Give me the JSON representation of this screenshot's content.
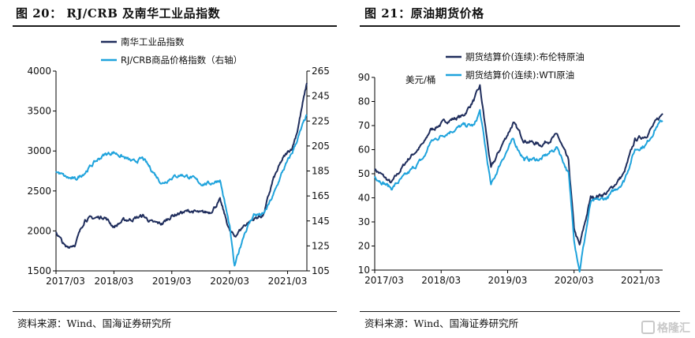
{
  "figures": {
    "left_title": "图 20：  RJ/CRB 及南华工业品指数",
    "right_title": "图 21：原油期货价格",
    "left_source": "资料来源：Wind、国海证券研究所",
    "right_source": "资料来源：Wind、国海证券研究所",
    "watermark": "格隆汇"
  },
  "colors": {
    "navy": "#1f2d5c",
    "cyan": "#1fa3dc",
    "axis": "#000000"
  },
  "chart_data": [
    {
      "type": "line",
      "title": "RJ/CRB 及南华工业品指数",
      "x_ticks": [
        "2017/03",
        "2018/03",
        "2019/03",
        "2020/03",
        "2021/03"
      ],
      "x_range": [
        "2017-03",
        "2021-07"
      ],
      "ylim": [
        1500,
        4000
      ],
      "y_ticks": [
        1500,
        2000,
        2500,
        3000,
        3500,
        4000
      ],
      "y2lim": [
        105,
        265
      ],
      "y2_ticks": [
        105,
        125,
        145,
        165,
        185,
        205,
        225,
        245,
        265
      ],
      "legend_position": "top",
      "series": [
        {
          "name": "南华工业品指数",
          "axis": "left",
          "color": "#1f2d5c",
          "x": [
            "2017-03",
            "2017-05",
            "2017-07",
            "2017-09",
            "2017-11",
            "2018-01",
            "2018-03",
            "2018-05",
            "2018-07",
            "2018-09",
            "2018-11",
            "2019-01",
            "2019-03",
            "2019-05",
            "2019-07",
            "2019-09",
            "2019-11",
            "2020-01",
            "2020-03",
            "2020-04",
            "2020-06",
            "2020-08",
            "2020-10",
            "2020-12",
            "2021-02",
            "2021-04",
            "2021-05",
            "2021-07"
          ],
          "values": [
            1990,
            1790,
            1840,
            2150,
            2160,
            2180,
            2050,
            2130,
            2150,
            2190,
            2100,
            2090,
            2190,
            2230,
            2250,
            2220,
            2240,
            2380,
            2000,
            1930,
            2070,
            2150,
            2200,
            2640,
            2900,
            3050,
            3250,
            3850
          ]
        },
        {
          "name": "RJ/CRB商品价格指数（右轴）",
          "axis": "right",
          "color": "#1fa3dc",
          "x": [
            "2017-03",
            "2017-05",
            "2017-07",
            "2017-09",
            "2017-11",
            "2018-01",
            "2018-03",
            "2018-05",
            "2018-07",
            "2018-09",
            "2018-11",
            "2019-01",
            "2019-03",
            "2019-05",
            "2019-07",
            "2019-09",
            "2019-11",
            "2020-01",
            "2020-03",
            "2020-04",
            "2020-06",
            "2020-08",
            "2020-10",
            "2020-12",
            "2021-02",
            "2021-04",
            "2021-05",
            "2021-07"
          ],
          "values": [
            185,
            180,
            178,
            184,
            192,
            198,
            200,
            196,
            192,
            195,
            185,
            175,
            180,
            182,
            180,
            175,
            175,
            178,
            140,
            108,
            135,
            150,
            150,
            165,
            185,
            200,
            210,
            230
          ]
        }
      ]
    },
    {
      "type": "line",
      "title": "原油期货价格",
      "unit": "美元/桶",
      "x_ticks": [
        "2017/03",
        "2018/03",
        "2019/03",
        "2020/03",
        "2021/03"
      ],
      "x_range": [
        "2017-03",
        "2021-07"
      ],
      "ylim": [
        10,
        90
      ],
      "y_ticks": [
        10,
        20,
        30,
        40,
        50,
        60,
        70,
        80,
        90
      ],
      "legend_position": "top",
      "series": [
        {
          "name": "期货结算价(连续):布伦特原油",
          "color": "#1f2d5c",
          "x": [
            "2017-03",
            "2017-06",
            "2017-09",
            "2017-12",
            "2018-01",
            "2018-04",
            "2018-07",
            "2018-09",
            "2018-10",
            "2018-12",
            "2019-02",
            "2019-04",
            "2019-06",
            "2019-09",
            "2019-12",
            "2020-02",
            "2020-03",
            "2020-04",
            "2020-06",
            "2020-09",
            "2020-12",
            "2021-02",
            "2021-04",
            "2021-06",
            "2021-07"
          ],
          "values": [
            52,
            46,
            56,
            63,
            68,
            72,
            74,
            81,
            86,
            52,
            62,
            71,
            64,
            62,
            66,
            55,
            27,
            20,
            40,
            42,
            50,
            64,
            66,
            72,
            75
          ]
        },
        {
          "name": "期货结算价(连续):WTI原油",
          "color": "#1fa3dc",
          "x": [
            "2017-03",
            "2017-06",
            "2017-09",
            "2017-12",
            "2018-01",
            "2018-04",
            "2018-07",
            "2018-09",
            "2018-10",
            "2018-12",
            "2019-02",
            "2019-04",
            "2019-06",
            "2019-09",
            "2019-12",
            "2020-02",
            "2020-03",
            "2020-04",
            "2020-06",
            "2020-09",
            "2020-12",
            "2021-02",
            "2021-04",
            "2021-06",
            "2021-07"
          ],
          "values": [
            49,
            44,
            50,
            57,
            63,
            67,
            70,
            70,
            76,
            45,
            56,
            64,
            56,
            56,
            61,
            50,
            23,
            10,
            38,
            40,
            47,
            60,
            62,
            70,
            72
          ]
        }
      ]
    }
  ]
}
